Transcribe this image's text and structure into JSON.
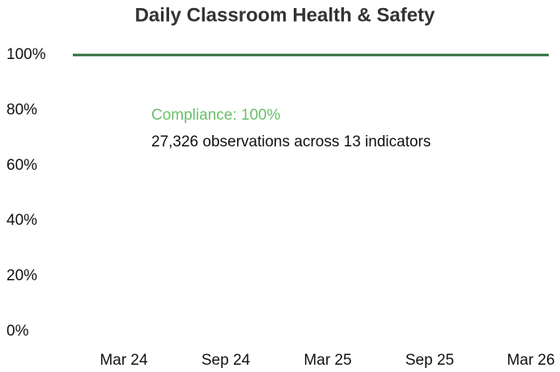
{
  "chart_data": {
    "type": "line",
    "title": "Daily Classroom Health & Safety",
    "x": [
      "2023-12",
      "2024-01",
      "2024-02",
      "2024-03",
      "2024-04",
      "2024-05",
      "2024-06",
      "2024-07",
      "2024-08",
      "2024-09",
      "2024-10",
      "2024-11",
      "2024-12",
      "2025-01",
      "2025-02",
      "2025-03",
      "2025-04",
      "2025-05",
      "2025-06",
      "2025-07",
      "2025-08",
      "2025-09",
      "2025-10",
      "2025-11",
      "2025-12",
      "2026-01",
      "2026-02",
      "2026-03",
      "2026-04"
    ],
    "series": [
      {
        "name": "Compliance",
        "color": "#2e6b3a",
        "values": [
          100,
          100,
          100,
          100,
          100,
          100,
          100,
          100,
          100,
          100,
          100,
          100,
          100,
          100,
          100,
          100,
          100,
          100,
          100,
          100,
          100,
          100,
          100,
          100,
          100,
          100,
          100,
          100,
          100
        ]
      }
    ],
    "xlim": [
      "2023-12",
      "2026-04"
    ],
    "xticks": [
      {
        "value": "2024-03",
        "label": "Mar 24"
      },
      {
        "value": "2024-09",
        "label": "Sep 24"
      },
      {
        "value": "2025-03",
        "label": "Mar 25"
      },
      {
        "value": "2025-09",
        "label": "Sep 25"
      },
      {
        "value": "2026-03",
        "label": "Mar 26"
      }
    ],
    "ylim": [
      0,
      100
    ],
    "yticks": [
      {
        "value": 0,
        "label": "0%"
      },
      {
        "value": 20,
        "label": "20%"
      },
      {
        "value": 40,
        "label": "40%"
      },
      {
        "value": 60,
        "label": "60%"
      },
      {
        "value": 80,
        "label": "80%"
      },
      {
        "value": 100,
        "label": "100%"
      }
    ],
    "grid": false,
    "annotations": [
      "Compliance: 100%",
      "27,326 observations across 13 indicators"
    ]
  }
}
